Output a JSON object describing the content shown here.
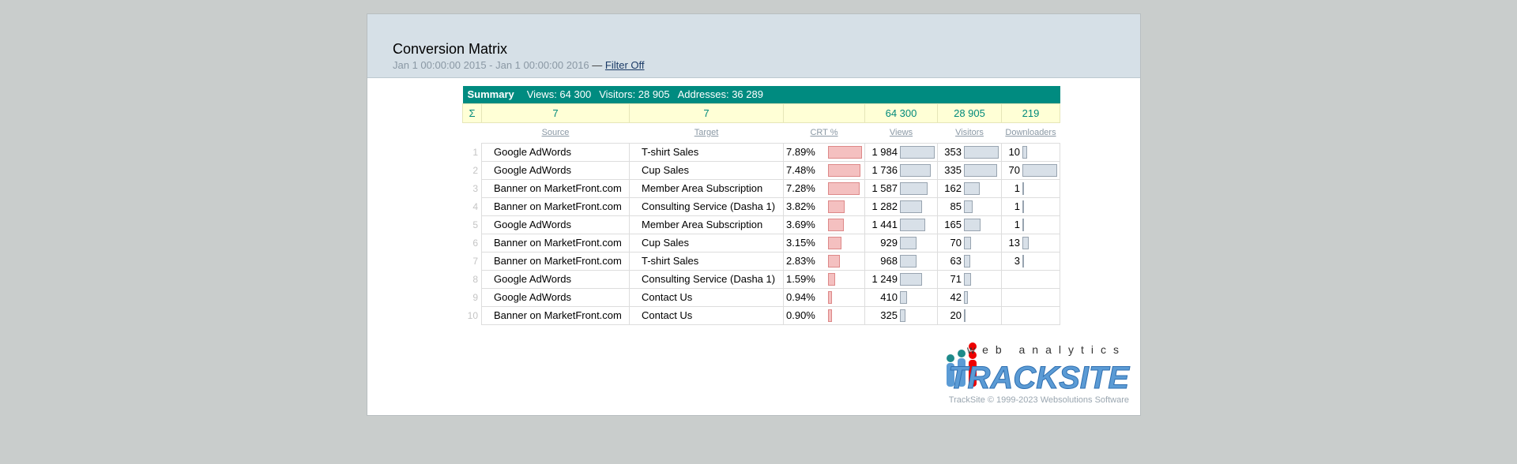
{
  "header": {
    "title": "Conversion Matrix",
    "date_range": "Jan 1 00:00:00 2015 - Jan 1 00:00:00 2016",
    "separator": "—",
    "filter_link": "Filter Off"
  },
  "summary": {
    "label": "Summary",
    "views": "Views: 64 300",
    "visitors": "Visitors: 28 905",
    "addresses": "Addresses: 36 289"
  },
  "totals": {
    "symbol": "Σ",
    "cells": [
      "7",
      "7",
      null,
      "64 300",
      "28 905",
      "219"
    ]
  },
  "table": {
    "columns": [
      "Source",
      "Target",
      "CRT %",
      "Views",
      "Visitors",
      "Downloaders"
    ],
    "rows": [
      [
        "1",
        "Google AdWords",
        "T-shirt Sales",
        "7.89%",
        "1 984",
        "353",
        "10"
      ],
      [
        "2",
        "Google AdWords",
        "Cup Sales",
        "7.48%",
        "1 736",
        "335",
        "70"
      ],
      [
        "3",
        "Banner on MarketFront.com",
        "Member Area Subscription",
        "7.28%",
        "1 587",
        "162",
        "1"
      ],
      [
        "4",
        "Banner on MarketFront.com",
        "Consulting Service (Dasha 1)",
        "3.82%",
        "1 282",
        "85",
        "1"
      ],
      [
        "5",
        "Google AdWords",
        "Member Area Subscription",
        "3.69%",
        "1 441",
        "165",
        "1"
      ],
      [
        "6",
        "Banner on MarketFront.com",
        "Cup Sales",
        "3.15%",
        "929",
        "70",
        "13"
      ],
      [
        "7",
        "Banner on MarketFront.com",
        "T-shirt Sales",
        "2.83%",
        "968",
        "63",
        "3"
      ],
      [
        "8",
        "Google AdWords",
        "Consulting Service (Dasha 1)",
        "1.59%",
        "1 249",
        "71",
        null
      ],
      [
        "9",
        "Google AdWords",
        "Contact Us",
        "0.94%",
        "410",
        "42",
        null
      ],
      [
        "10",
        "Banner on MarketFront.com",
        "Contact Us",
        "0.90%",
        "325",
        "20",
        null
      ]
    ]
  },
  "logo": {
    "tagline": "web analytics",
    "brand": "TRACKSITE"
  },
  "footer": "TrackSite © 1999-2023 Websolutions Software"
}
